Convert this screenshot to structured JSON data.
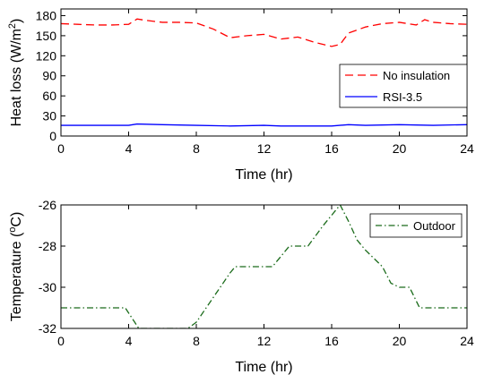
{
  "chart_data": [
    {
      "type": "line",
      "xlabel": "Time (hr)",
      "ylabel": "Heat loss (W/m2)",
      "ylabel_parts": {
        "main": "Heat loss (W/m",
        "sup": "2",
        "end": ")"
      },
      "xlim": [
        0,
        24
      ],
      "ylim": [
        0,
        190
      ],
      "xticks": [
        0,
        4,
        8,
        12,
        16,
        20,
        24
      ],
      "yticks": [
        0,
        30,
        60,
        90,
        120,
        150,
        180
      ],
      "grid": false,
      "legend_position": "right",
      "series": [
        {
          "name": "No insulation",
          "color": "#ff0000",
          "line_style": "dashed",
          "x": [
            0,
            1,
            2,
            3,
            4,
            4.5,
            5,
            6,
            7,
            8,
            9,
            10,
            11,
            12,
            13,
            14,
            15,
            16,
            16.5,
            17,
            18,
            19,
            20,
            21,
            21.5,
            22,
            23,
            24
          ],
          "y": [
            168,
            167,
            166,
            166,
            167,
            175,
            173,
            170,
            170,
            169,
            160,
            147,
            150,
            152,
            145,
            148,
            140,
            134,
            137,
            154,
            163,
            168,
            170,
            166,
            174,
            170,
            168,
            167
          ]
        },
        {
          "name": "RSI-3.5",
          "color": "#0000ff",
          "line_style": "solid",
          "x": [
            0,
            2,
            4,
            4.5,
            6,
            8,
            10,
            12,
            13,
            14,
            16,
            17,
            18,
            20,
            22,
            24
          ],
          "y": [
            16,
            16,
            16,
            18,
            17,
            16,
            15,
            16,
            15,
            15,
            15,
            17,
            16,
            17,
            16,
            17
          ]
        }
      ]
    },
    {
      "type": "line",
      "xlabel": "Time (hr)",
      "ylabel": "Temperature (oC)",
      "ylabel_parts": {
        "main": "Temperature (",
        "sup": "o",
        "end": "C)"
      },
      "xlim": [
        0,
        24
      ],
      "ylim": [
        -32,
        -26
      ],
      "xticks": [
        0,
        4,
        8,
        12,
        16,
        20,
        24
      ],
      "yticks": [
        -32,
        -30,
        -28,
        -26
      ],
      "grid": false,
      "legend_position": "top-right",
      "series": [
        {
          "name": "Outdoor",
          "color": "#1a6b1a",
          "line_style": "dash-dot",
          "x": [
            0,
            1,
            2,
            3,
            3.8,
            4.6,
            6,
            7.5,
            8,
            9,
            10,
            10.3,
            11,
            12,
            12.5,
            13.5,
            14,
            14.6,
            15.5,
            16.5,
            17,
            17.5,
            18,
            19,
            19.5,
            20,
            20.6,
            21.2,
            22,
            23,
            24
          ],
          "y": [
            -31,
            -31,
            -31,
            -31,
            -31,
            -32,
            -32,
            -32,
            -31.7,
            -30.5,
            -29.3,
            -29,
            -29,
            -29,
            -29,
            -28,
            -28,
            -28,
            -27,
            -26,
            -26.8,
            -27.7,
            -28.2,
            -29,
            -29.8,
            -30,
            -30,
            -31,
            -31,
            -31,
            -31
          ]
        }
      ]
    }
  ]
}
